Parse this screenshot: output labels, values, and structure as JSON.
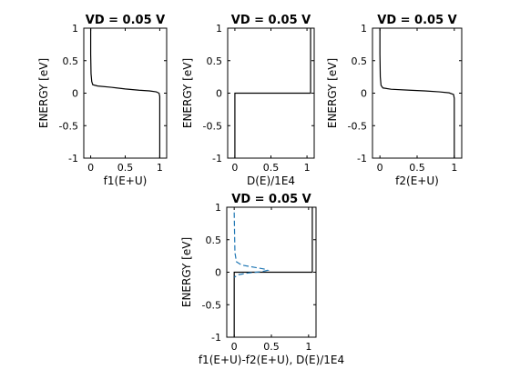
{
  "chart_data": [
    {
      "type": "line",
      "title": "VD = 0.05 V",
      "xlabel": "f1(E+U)",
      "ylabel": "ENERGY  [eV]",
      "xlim": [
        -0.1,
        1.1
      ],
      "ylim": [
        -1,
        1
      ],
      "xticks": [
        "0",
        "0.5",
        "1"
      ],
      "xtick_values": [
        0,
        0.5,
        1
      ],
      "yticks": [
        "1",
        "0.5",
        "0",
        "-0.5",
        "-1"
      ],
      "ytick_values": [
        1,
        0.5,
        0,
        -0.5,
        -1
      ],
      "series": [
        {
          "color": "#000000",
          "dash": "solid",
          "points": [
            [
              0,
              1
            ],
            [
              0,
              0.6
            ],
            [
              0.005,
              0.3
            ],
            [
              0.015,
              0.18
            ],
            [
              0.03,
              0.13
            ],
            [
              0.1,
              0.11
            ],
            [
              0.3,
              0.09
            ],
            [
              0.5,
              0.065
            ],
            [
              0.7,
              0.045
            ],
            [
              0.85,
              0.035
            ],
            [
              0.95,
              0.02
            ],
            [
              0.99,
              0.0
            ],
            [
              1.0,
              -0.05
            ],
            [
              1.0,
              -0.3
            ],
            [
              1.0,
              -1
            ]
          ]
        }
      ]
    },
    {
      "type": "line",
      "title": "VD = 0.05 V",
      "xlabel": "D(E)/1E4",
      "ylabel": "ENERGY  [eV]",
      "xlim": [
        -0.1,
        1.1
      ],
      "ylim": [
        -1,
        1
      ],
      "xticks": [
        "0",
        "0.5",
        "1"
      ],
      "xtick_values": [
        0,
        0.5,
        1
      ],
      "yticks": [
        "1",
        "0.5",
        "0",
        "-0.5",
        "-1"
      ],
      "ytick_values": [
        1,
        0.5,
        0,
        -0.5,
        -1
      ],
      "series": [
        {
          "color": "#000000",
          "dash": "solid",
          "points": [
            [
              0,
              -1
            ],
            [
              0,
              0
            ],
            [
              1.05,
              0
            ],
            [
              1.05,
              1
            ]
          ]
        }
      ]
    },
    {
      "type": "line",
      "title": "VD = 0.05 V",
      "xlabel": "f2(E+U)",
      "ylabel": "ENERGY  [eV]",
      "xlim": [
        -0.1,
        1.1
      ],
      "ylim": [
        -1,
        1
      ],
      "xticks": [
        "0",
        "0.5",
        "1"
      ],
      "xtick_values": [
        0,
        0.5,
        1
      ],
      "yticks": [
        "1",
        "0.5",
        "0",
        "-0.5",
        "-1"
      ],
      "ytick_values": [
        1,
        0.5,
        0,
        -0.5,
        -1
      ],
      "series": [
        {
          "color": "#000000",
          "dash": "solid",
          "points": [
            [
              0,
              1
            ],
            [
              0,
              0.6
            ],
            [
              0.005,
              0.25
            ],
            [
              0.015,
              0.12
            ],
            [
              0.04,
              0.08
            ],
            [
              0.15,
              0.06
            ],
            [
              0.4,
              0.045
            ],
            [
              0.6,
              0.035
            ],
            [
              0.8,
              0.02
            ],
            [
              0.93,
              0.005
            ],
            [
              0.99,
              -0.02
            ],
            [
              1.0,
              -0.08
            ],
            [
              1.0,
              -0.3
            ],
            [
              1.0,
              -1
            ]
          ]
        }
      ]
    },
    {
      "type": "line",
      "title": "VD = 0.05 V",
      "xlabel": "f1(E+U)-f2(E+U), D(E)/1E4",
      "ylabel": "ENERGY  [eV]",
      "xlim": [
        -0.1,
        1.1
      ],
      "ylim": [
        -1,
        1
      ],
      "xticks": [
        "0",
        "0.5",
        "1"
      ],
      "xtick_values": [
        0,
        0.5,
        1
      ],
      "yticks": [
        "1",
        "0.5",
        "0",
        "-0.5",
        "-1"
      ],
      "ytick_values": [
        1,
        0.5,
        0,
        -0.5,
        -1
      ],
      "series": [
        {
          "color": "#000000",
          "dash": "solid",
          "points": [
            [
              0,
              -1
            ],
            [
              0,
              0
            ],
            [
              1.05,
              0
            ],
            [
              1.05,
              1
            ]
          ]
        },
        {
          "color": "#1f77b4",
          "dash": "dashed",
          "points": [
            [
              0,
              0.92
            ],
            [
              0.005,
              0.6
            ],
            [
              0.01,
              0.3
            ],
            [
              0.03,
              0.16
            ],
            [
              0.1,
              0.11
            ],
            [
              0.25,
              0.08
            ],
            [
              0.4,
              0.05
            ],
            [
              0.45,
              0.03
            ],
            [
              0.38,
              0.01
            ],
            [
              0.2,
              -0.01
            ],
            [
              0.05,
              -0.04
            ],
            [
              0.0,
              -0.08
            ]
          ]
        }
      ]
    }
  ]
}
